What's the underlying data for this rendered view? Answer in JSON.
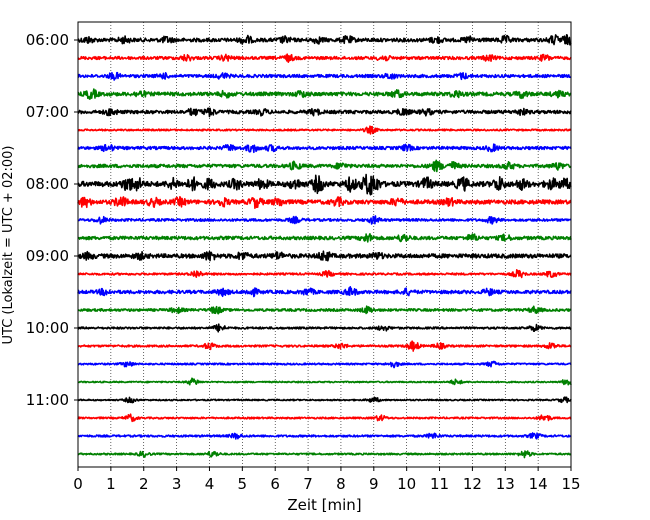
{
  "chart_data": {
    "type": "line",
    "title": "",
    "xlabel": "Zeit  [min]",
    "ylabel": "UTC (Lokalzeit = UTC + 02:00)",
    "xlim": [
      0,
      15
    ],
    "x_ticks": [
      "0",
      "1",
      "2",
      "3",
      "4",
      "5",
      "6",
      "7",
      "8",
      "9",
      "10",
      "11",
      "12",
      "13",
      "14",
      "15"
    ],
    "y_ticks": [
      "06:00",
      "07:00",
      "08:00",
      "09:00",
      "10:00",
      "11:00"
    ],
    "grid": "vertical dotted",
    "row_interval_minutes": 15,
    "colors": [
      "#000000",
      "#ff0000",
      "#0000ff",
      "#008000"
    ],
    "series": [
      {
        "start": "06:00",
        "color": "#000000",
        "amplitude": 0.22,
        "events": [
          [
            0.3,
            0.3
          ],
          [
            1.4,
            0.3
          ],
          [
            2.7,
            0.3
          ],
          [
            5.1,
            0.45
          ],
          [
            6.3,
            0.3
          ],
          [
            7.3,
            0.3
          ],
          [
            8.2,
            0.35
          ],
          [
            10.9,
            0.3
          ],
          [
            11.9,
            0.3
          ],
          [
            13.0,
            0.35
          ],
          [
            14.5,
            0.45
          ],
          [
            14.9,
            0.45
          ]
        ]
      },
      {
        "start": "06:15",
        "color": "#ff0000",
        "amplitude": 0.18,
        "events": [
          [
            3.3,
            0.3
          ],
          [
            4.5,
            0.3
          ],
          [
            6.4,
            0.35
          ],
          [
            9.3,
            0.3
          ],
          [
            12.5,
            0.3
          ],
          [
            14.2,
            0.3
          ]
        ]
      },
      {
        "start": "06:30",
        "color": "#0000ff",
        "amplitude": 0.18,
        "events": [
          [
            1.1,
            0.35
          ],
          [
            2.6,
            0.25
          ],
          [
            4.4,
            0.3
          ],
          [
            9.5,
            0.3
          ],
          [
            11.7,
            0.3
          ]
        ]
      },
      {
        "start": "06:45",
        "color": "#008000",
        "amplitude": 0.22,
        "events": [
          [
            0.4,
            0.5
          ],
          [
            1.9,
            0.3
          ],
          [
            4.5,
            0.3
          ],
          [
            6.8,
            0.3
          ],
          [
            9.7,
            0.35
          ],
          [
            11.5,
            0.35
          ],
          [
            13.5,
            0.35
          ],
          [
            14.6,
            0.3
          ]
        ]
      },
      {
        "start": "07:00",
        "color": "#000000",
        "amplitude": 0.2,
        "events": [
          [
            1.0,
            0.35
          ],
          [
            3.5,
            0.35
          ],
          [
            4.0,
            0.4
          ],
          [
            5.6,
            0.3
          ],
          [
            7.2,
            0.3
          ],
          [
            9.9,
            0.35
          ],
          [
            10.6,
            0.3
          ],
          [
            13.5,
            0.3
          ]
        ]
      },
      {
        "start": "07:15",
        "color": "#ff0000",
        "amplitude": 0.1,
        "events": [
          [
            8.9,
            0.4
          ]
        ]
      },
      {
        "start": "07:30",
        "color": "#0000ff",
        "amplitude": 0.18,
        "events": [
          [
            0.9,
            0.4
          ],
          [
            4.6,
            0.3
          ],
          [
            5.3,
            0.45
          ],
          [
            5.9,
            0.3
          ],
          [
            10.0,
            0.3
          ],
          [
            12.6,
            0.35
          ]
        ]
      },
      {
        "start": "07:45",
        "color": "#008000",
        "amplitude": 0.2,
        "events": [
          [
            6.6,
            0.4
          ],
          [
            8.0,
            0.3
          ],
          [
            10.9,
            0.55
          ],
          [
            11.4,
            0.4
          ],
          [
            13.1,
            0.35
          ],
          [
            14.6,
            0.35
          ]
        ]
      },
      {
        "start": "08:00",
        "color": "#000000",
        "amplitude": 0.3,
        "events": [
          [
            1.5,
            0.6
          ],
          [
            1.8,
            0.6
          ],
          [
            2.9,
            0.5
          ],
          [
            3.5,
            0.6
          ],
          [
            4.0,
            0.5
          ],
          [
            4.8,
            0.5
          ],
          [
            5.6,
            0.5
          ],
          [
            6.6,
            0.5
          ],
          [
            7.3,
            0.9
          ],
          [
            8.3,
            0.7
          ],
          [
            8.8,
            0.9
          ],
          [
            9.0,
            0.9
          ],
          [
            10.6,
            0.6
          ],
          [
            11.7,
            0.7
          ],
          [
            12.8,
            0.7
          ],
          [
            13.5,
            0.5
          ],
          [
            14.4,
            0.5
          ],
          [
            14.8,
            0.5
          ]
        ]
      },
      {
        "start": "08:15",
        "color": "#ff0000",
        "amplitude": 0.25,
        "events": [
          [
            0.2,
            0.5
          ],
          [
            1.3,
            0.55
          ],
          [
            2.3,
            0.4
          ],
          [
            3.1,
            0.4
          ],
          [
            4.4,
            0.4
          ],
          [
            5.4,
            0.55
          ],
          [
            6.1,
            0.4
          ],
          [
            7.9,
            0.4
          ],
          [
            9.7,
            0.4
          ],
          [
            11.3,
            0.35
          ]
        ]
      },
      {
        "start": "08:30",
        "color": "#0000ff",
        "amplitude": 0.15,
        "events": [
          [
            0.7,
            0.35
          ],
          [
            6.6,
            0.3
          ],
          [
            9.0,
            0.4
          ],
          [
            12.6,
            0.35
          ]
        ]
      },
      {
        "start": "08:45",
        "color": "#008000",
        "amplitude": 0.2,
        "events": [
          [
            8.8,
            0.45
          ],
          [
            9.9,
            0.4
          ],
          [
            12.0,
            0.35
          ],
          [
            13.0,
            0.3
          ]
        ]
      },
      {
        "start": "09:00",
        "color": "#000000",
        "amplitude": 0.25,
        "events": [
          [
            0.3,
            0.3
          ],
          [
            1.9,
            0.3
          ],
          [
            4.0,
            0.45
          ],
          [
            5.0,
            0.4
          ],
          [
            6.1,
            0.35
          ],
          [
            7.5,
            0.55
          ],
          [
            9.1,
            0.3
          ]
        ]
      },
      {
        "start": "09:15",
        "color": "#ff0000",
        "amplitude": 0.12,
        "events": [
          [
            3.6,
            0.4
          ],
          [
            7.6,
            0.3
          ],
          [
            13.4,
            0.45
          ],
          [
            14.4,
            0.35
          ]
        ]
      },
      {
        "start": "09:30",
        "color": "#0000ff",
        "amplitude": 0.2,
        "events": [
          [
            0.8,
            0.3
          ],
          [
            4.4,
            0.35
          ],
          [
            5.3,
            0.4
          ],
          [
            7.0,
            0.35
          ],
          [
            8.3,
            0.45
          ],
          [
            10.0,
            0.3
          ],
          [
            12.5,
            0.3
          ]
        ]
      },
      {
        "start": "09:45",
        "color": "#008000",
        "amplitude": 0.15,
        "events": [
          [
            3.0,
            0.3
          ],
          [
            4.2,
            0.4
          ],
          [
            8.8,
            0.35
          ],
          [
            13.9,
            0.35
          ]
        ]
      },
      {
        "start": "10:00",
        "color": "#000000",
        "amplitude": 0.12,
        "events": [
          [
            4.3,
            0.4
          ],
          [
            9.3,
            0.3
          ],
          [
            13.9,
            0.35
          ]
        ]
      },
      {
        "start": "10:15",
        "color": "#ff0000",
        "amplitude": 0.12,
        "events": [
          [
            4.0,
            0.35
          ],
          [
            8.0,
            0.3
          ],
          [
            10.2,
            0.55
          ],
          [
            11.0,
            0.3
          ],
          [
            14.4,
            0.35
          ]
        ]
      },
      {
        "start": "10:30",
        "color": "#0000ff",
        "amplitude": 0.1,
        "events": [
          [
            1.5,
            0.3
          ],
          [
            9.6,
            0.35
          ],
          [
            12.6,
            0.3
          ]
        ]
      },
      {
        "start": "10:45",
        "color": "#008000",
        "amplitude": 0.08,
        "events": [
          [
            3.5,
            0.4
          ],
          [
            11.5,
            0.3
          ],
          [
            14.9,
            0.4
          ]
        ]
      },
      {
        "start": "11:00",
        "color": "#000000",
        "amplitude": 0.08,
        "events": [
          [
            1.6,
            0.3
          ],
          [
            9.0,
            0.3
          ],
          [
            14.8,
            0.3
          ]
        ]
      },
      {
        "start": "11:15",
        "color": "#ff0000",
        "amplitude": 0.1,
        "events": [
          [
            1.6,
            0.4
          ],
          [
            9.2,
            0.3
          ],
          [
            14.2,
            0.4
          ]
        ]
      },
      {
        "start": "11:30",
        "color": "#0000ff",
        "amplitude": 0.12,
        "events": [
          [
            4.8,
            0.3
          ],
          [
            10.8,
            0.3
          ],
          [
            13.9,
            0.3
          ]
        ]
      },
      {
        "start": "11:45",
        "color": "#008000",
        "amplitude": 0.1,
        "events": [
          [
            2.0,
            0.3
          ],
          [
            4.1,
            0.35
          ],
          [
            13.6,
            0.4
          ]
        ]
      }
    ]
  }
}
